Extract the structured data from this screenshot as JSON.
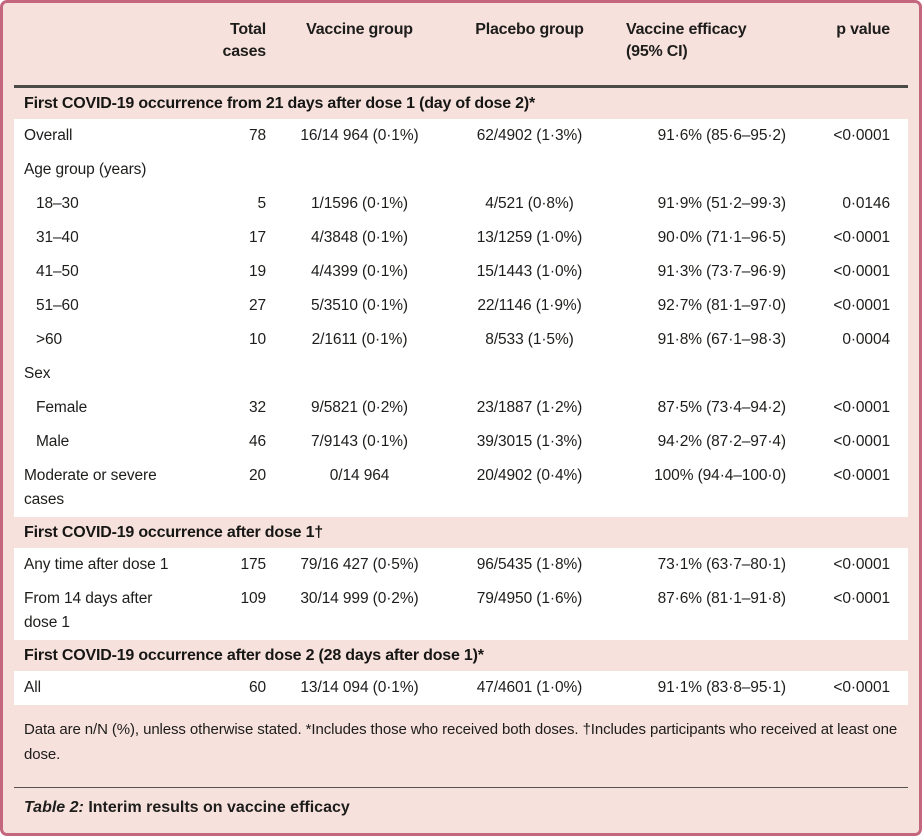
{
  "panel": {
    "columns": {
      "total": "Total cases",
      "vaccine": "Vaccine group",
      "placebo": "Placebo group",
      "efficacy": "Vaccine efficacy (95% CI)",
      "p": "p value"
    },
    "sections": [
      {
        "title": "First COVID-19 occurrence from 21 days after dose 1 (day of dose 2)*",
        "rows": [
          {
            "label": "Overall",
            "indent": false,
            "total": "78",
            "vaccine": "16/14 964 (0·1%)",
            "placebo": "62/4902 (1·3%)",
            "efficacy": "91·6% (85·6–95·2)",
            "p": "<0·0001"
          },
          {
            "label": "Age group (years)",
            "indent": false,
            "total": "",
            "vaccine": "",
            "placebo": "",
            "efficacy": "",
            "p": ""
          },
          {
            "label": "18–30",
            "indent": true,
            "total": "5",
            "vaccine": "1/1596 (0·1%)",
            "placebo": "4/521 (0·8%)",
            "efficacy": "91·9% (51·2–99·3)",
            "p": "0·0146"
          },
          {
            "label": "31–40",
            "indent": true,
            "total": "17",
            "vaccine": "4/3848 (0·1%)",
            "placebo": "13/1259 (1·0%)",
            "efficacy": "90·0% (71·1–96·5)",
            "p": "<0·0001"
          },
          {
            "label": "41–50",
            "indent": true,
            "total": "19",
            "vaccine": "4/4399 (0·1%)",
            "placebo": "15/1443 (1·0%)",
            "efficacy": "91·3% (73·7–96·9)",
            "p": "<0·0001"
          },
          {
            "label": "51–60",
            "indent": true,
            "total": "27",
            "vaccine": "5/3510 (0·1%)",
            "placebo": "22/1146 (1·9%)",
            "efficacy": "92·7% (81·1–97·0)",
            "p": "<0·0001"
          },
          {
            "label": ">60",
            "indent": true,
            "total": "10",
            "vaccine": "2/1611 (0·1%)",
            "placebo": "8/533 (1·5%)",
            "efficacy": "91·8% (67·1–98·3)",
            "p": "0·0004"
          },
          {
            "label": "Sex",
            "indent": false,
            "total": "",
            "vaccine": "",
            "placebo": "",
            "efficacy": "",
            "p": ""
          },
          {
            "label": "Female",
            "indent": true,
            "total": "32",
            "vaccine": "9/5821 (0·2%)",
            "placebo": "23/1887 (1·2%)",
            "efficacy": "87·5% (73·4–94·2)",
            "p": "<0·0001"
          },
          {
            "label": "Male",
            "indent": true,
            "total": "46",
            "vaccine": "7/9143 (0·1%)",
            "placebo": "39/3015 (1·3%)",
            "efficacy": "94·2% (87·2–97·4)",
            "p": "<0·0001"
          },
          {
            "label": "Moderate or severe cases",
            "indent": false,
            "total": "20",
            "vaccine": "0/14 964",
            "placebo": "20/4902 (0·4%)",
            "efficacy": "100% (94·4–100·0)",
            "p": "<0·0001"
          }
        ]
      },
      {
        "title": "First COVID-19 occurrence after dose 1†",
        "rows": [
          {
            "label": "Any time after dose 1",
            "indent": false,
            "total": "175",
            "vaccine": "79/16 427 (0·5%)",
            "placebo": "96/5435 (1·8%)",
            "efficacy": "73·1% (63·7–80·1)",
            "p": "<0·0001"
          },
          {
            "label": "From 14 days after dose 1",
            "indent": false,
            "total": "109",
            "vaccine": "30/14 999 (0·2%)",
            "placebo": "79/4950 (1·6%)",
            "efficacy": "87·6% (81·1–91·8)",
            "p": "<0·0001"
          }
        ]
      },
      {
        "title": "First COVID-19 occurrence after dose 2 (28 days after dose 1)*",
        "rows": [
          {
            "label": "All",
            "indent": false,
            "total": "60",
            "vaccine": "13/14 094 (0·1%)",
            "placebo": "47/4601 (1·0%)",
            "efficacy": "91·1% (83·8–95·1)",
            "p": "<0·0001"
          }
        ]
      }
    ],
    "footnote": "Data are n/N (%), unless otherwise stated. *Includes those who received both doses. †Includes participants who received at least one dose.",
    "caption": {
      "label": "Table 2:",
      "text": " Interim results on vaccine efficacy"
    },
    "colors": {
      "background": "#f7e1dc",
      "border": "#c4677e",
      "row_background": "#ffffff",
      "rule": "#4a4a47",
      "text": "#1d1d1b"
    }
  }
}
